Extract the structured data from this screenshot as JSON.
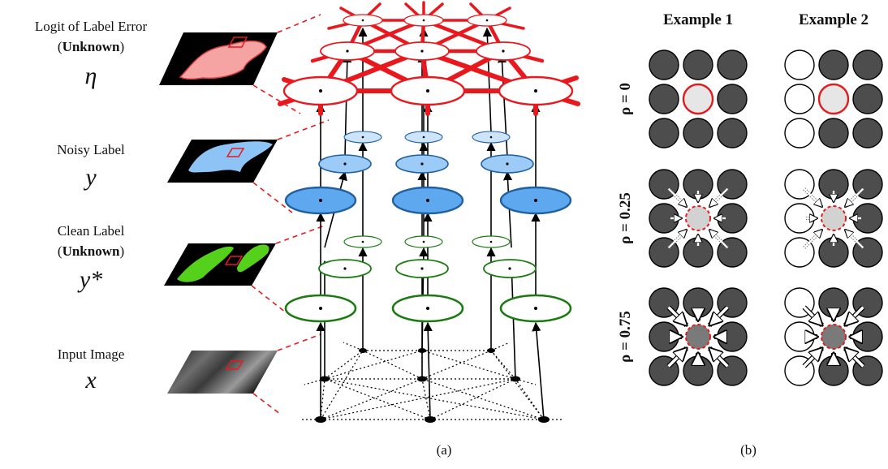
{
  "panel_a": {
    "caption": "(a)",
    "rows": [
      {
        "key": "eta",
        "title": "Logit of Label Error",
        "tag_open": "(",
        "tag_bold": "Unknown",
        "tag_close": ")",
        "symbol": "η"
      },
      {
        "key": "y",
        "title": "Noisy Label",
        "symbol": "y"
      },
      {
        "key": "ystar",
        "title": "Clean Label",
        "tag_open": "(",
        "tag_bold": "Unknown",
        "tag_close": ")",
        "symbol": "y*"
      },
      {
        "key": "x",
        "title": "Input Image",
        "symbol": "x"
      }
    ],
    "colors": {
      "eta": "#e8191e",
      "noisy_fill": "#5ea8f0",
      "noisy_stroke": "#2060a0",
      "clean": "#1b7a12",
      "node": "#000000"
    }
  },
  "panel_b": {
    "caption": "(b)",
    "columns": [
      "Example 1",
      "Example 2"
    ],
    "rows": [
      {
        "label": "ρ = 0",
        "rho": 0
      },
      {
        "label": "ρ = 0.25",
        "rho": 0.25
      },
      {
        "label": "ρ = 0.75",
        "rho": 0.75
      }
    ],
    "example2_white_cells": [
      "top-left",
      "middle-left",
      "bottom-left"
    ],
    "colors": {
      "dark": "#4d4d4d",
      "center": "#e6e6e6",
      "ring": "#e21b1b"
    }
  }
}
